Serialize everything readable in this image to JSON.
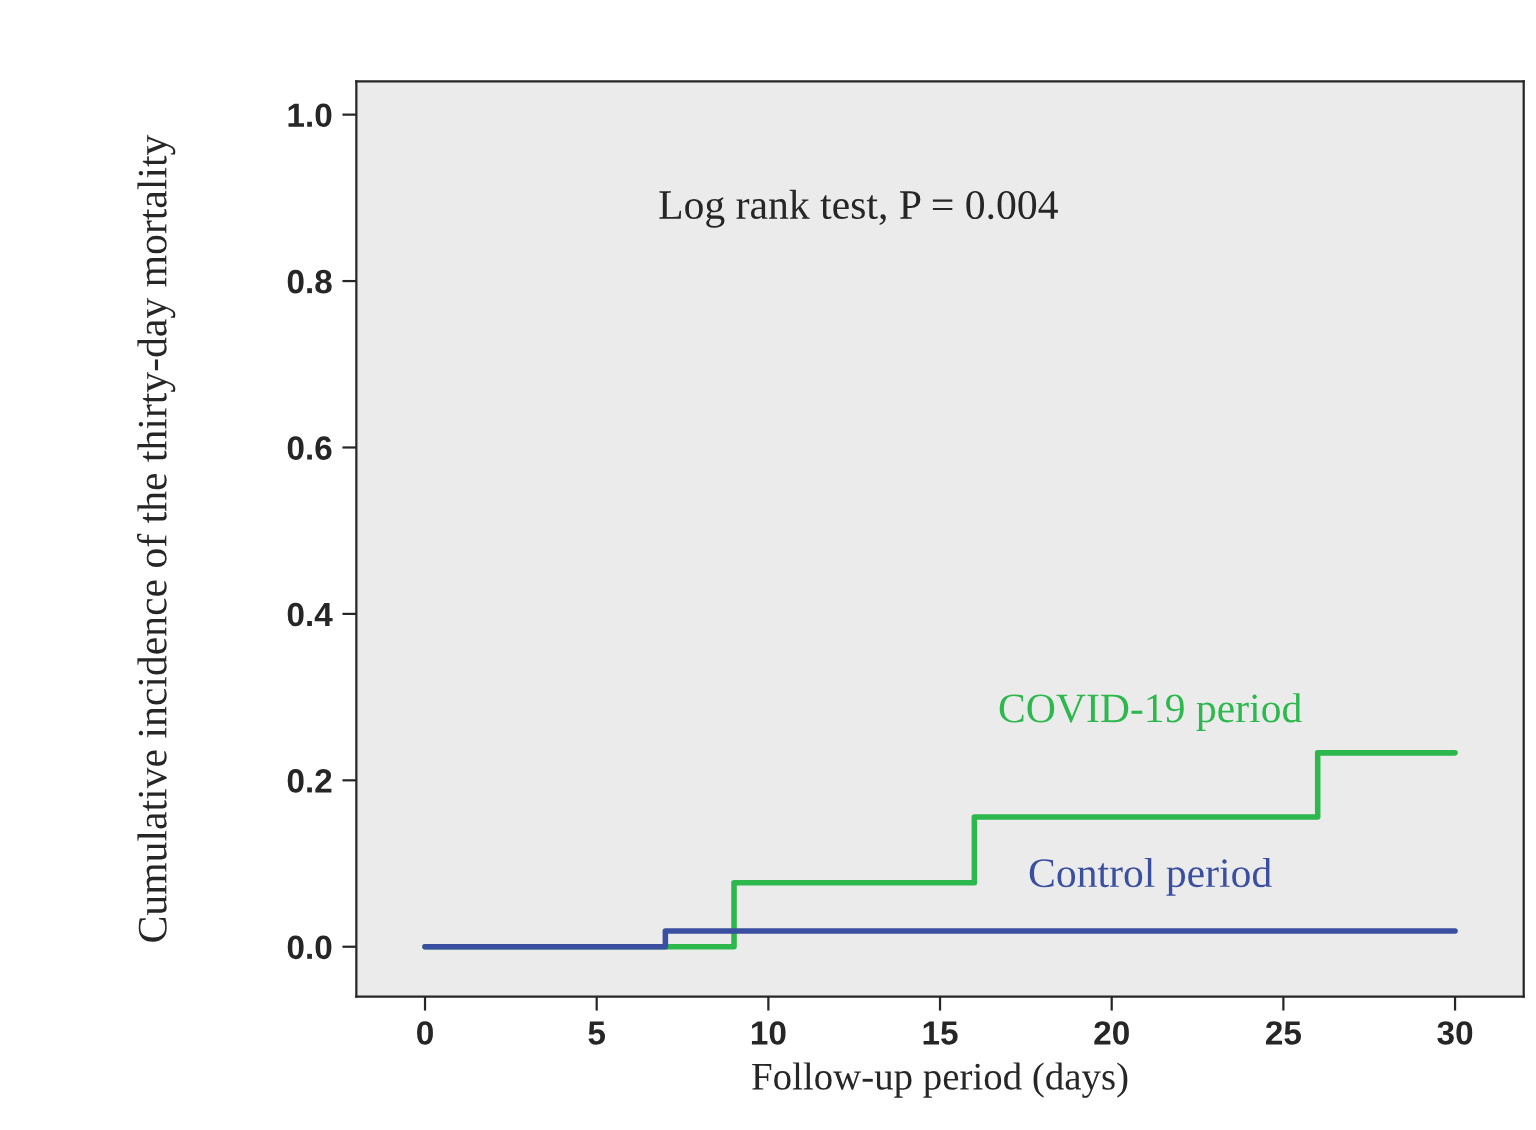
{
  "chart_data": {
    "type": "step",
    "xlabel": "Follow-up period (days)",
    "ylabel": "Cumulative incidence of the thirty-day mortality",
    "annotations": [
      "Log rank test, P = 0.004"
    ],
    "series": [
      {
        "name": "COVID-19 period",
        "color": "#2db84d",
        "x": [
          0,
          9,
          16,
          26,
          30
        ],
        "values": [
          0,
          0.077,
          0.156,
          0.233,
          0.233
        ]
      },
      {
        "name": "Control period",
        "color": "#3a4fa0",
        "x": [
          0,
          7,
          30
        ],
        "values": [
          0,
          0.019,
          0.019
        ]
      }
    ],
    "xlim": [
      -2,
      32
    ],
    "xticks": [
      0,
      5,
      10,
      15,
      20,
      25,
      30
    ],
    "ylim": [
      -0.06,
      1.04
    ],
    "yticks": [
      {
        "value": 0,
        "label": "0.0"
      },
      {
        "value": 0.2,
        "label": "0.2"
      },
      {
        "value": 0.4,
        "label": "0.4"
      },
      {
        "value": 0.6,
        "label": "0.6"
      },
      {
        "value": 0.8,
        "label": "0.8"
      },
      {
        "value": 1,
        "label": "1.0"
      }
    ],
    "grid": false,
    "legend": false
  }
}
